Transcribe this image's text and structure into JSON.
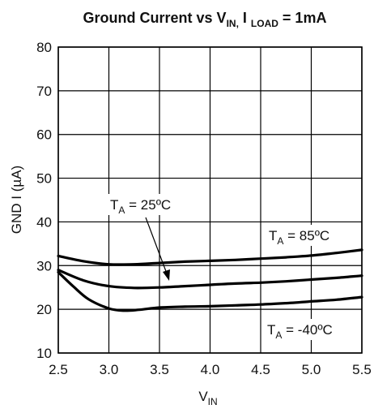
{
  "chart_data": {
    "type": "line",
    "title": {
      "main": "Ground Current vs V",
      "main_sub": "IN,",
      "load_prefix": " I ",
      "load_sub": "LOAD",
      "load_suffix": " = 1mA"
    },
    "xlabel": {
      "main": "V",
      "sub": "IN"
    },
    "ylabel": "GND I (µA)",
    "xlim": [
      2.5,
      5.5
    ],
    "ylim": [
      10,
      80
    ],
    "x_ticks": [
      2.5,
      3.0,
      3.5,
      4.0,
      4.5,
      5.0,
      5.5
    ],
    "x_tick_labels": [
      "2.5",
      "3.0",
      "3.5",
      "4.0",
      "4.5",
      "5.0",
      "5.5"
    ],
    "y_ticks": [
      10,
      20,
      30,
      40,
      50,
      60,
      70,
      80
    ],
    "y_tick_labels": [
      "10",
      "20",
      "30",
      "40",
      "50",
      "60",
      "70",
      "80"
    ],
    "grid": true,
    "series": [
      {
        "label_main": "T",
        "label_sub": "A",
        "label_rest": " = 85ºC",
        "x": [
          2.5,
          2.75,
          3.0,
          3.25,
          3.5,
          3.75,
          4.0,
          4.25,
          4.5,
          4.75,
          5.0,
          5.25,
          5.5
        ],
        "y": [
          32.2,
          31.0,
          30.3,
          30.3,
          30.6,
          30.9,
          31.1,
          31.3,
          31.6,
          31.9,
          32.3,
          32.9,
          33.6
        ]
      },
      {
        "label_main": "T",
        "label_sub": "A",
        "label_rest": " = 25ºC",
        "x": [
          2.5,
          2.75,
          3.0,
          3.25,
          3.5,
          3.75,
          4.0,
          4.25,
          4.5,
          4.75,
          5.0,
          5.25,
          5.5
        ],
        "y": [
          29.0,
          26.6,
          25.3,
          24.9,
          25.0,
          25.3,
          25.6,
          25.9,
          26.1,
          26.4,
          26.8,
          27.2,
          27.7
        ]
      },
      {
        "label_main": "T",
        "label_sub": "A",
        "label_rest": " = -40ºC",
        "x": [
          2.5,
          2.65,
          2.8,
          3.0,
          3.15,
          3.3,
          3.5,
          3.75,
          4.0,
          4.25,
          4.5,
          4.75,
          5.0,
          5.25,
          5.5
        ],
        "y": [
          28.5,
          25.2,
          22.3,
          20.2,
          19.7,
          19.9,
          20.4,
          20.6,
          20.7,
          20.9,
          21.1,
          21.4,
          21.8,
          22.2,
          22.8
        ]
      }
    ]
  }
}
